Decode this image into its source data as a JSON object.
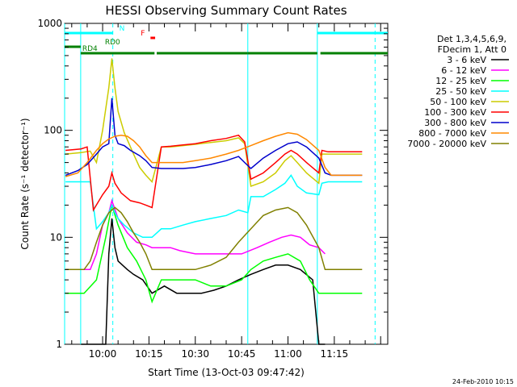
{
  "chart_data": {
    "type": "line",
    "title": "HESSI Observing Summary Count Rates",
    "xlabel": "Start Time (13-Oct-03 09:47:42)",
    "ylabel": "Count Rate (s⁻¹ detector⁻¹)",
    "y_scale": "log",
    "ylim": [
      1,
      1000
    ],
    "xlim_minutes": [
      -12.3,
      92.3
    ],
    "x_ticks": [
      {
        "label": "10:00",
        "value": 0
      },
      {
        "label": "10:15",
        "value": 15
      },
      {
        "label": "10:30",
        "value": 30
      },
      {
        "label": "10:45",
        "value": 45
      },
      {
        "label": "11:00",
        "value": 60
      },
      {
        "label": "11:15",
        "value": 75
      }
    ],
    "y_ticks": [
      {
        "label": "1",
        "value": 1
      },
      {
        "label": "10",
        "value": 10
      },
      {
        "label": "100",
        "value": 100
      },
      {
        "label": "1000",
        "value": 1000
      }
    ],
    "legend_header": [
      "Det 1,3,4,5,6,9,",
      "FDecim 1, Att 0"
    ],
    "series": [
      {
        "name": "3 - 6 keV",
        "color": "#000000",
        "points": [
          [
            -7,
            1
          ],
          [
            -3,
            1
          ],
          [
            1,
            1
          ],
          [
            2,
            7
          ],
          [
            3,
            15
          ],
          [
            4,
            8
          ],
          [
            5,
            6
          ],
          [
            8,
            5
          ],
          [
            10,
            4.5
          ],
          [
            13,
            4
          ],
          [
            16,
            3
          ],
          [
            20,
            3.5
          ],
          [
            24,
            3
          ],
          [
            28,
            3
          ],
          [
            32,
            3
          ],
          [
            36,
            3.2
          ],
          [
            40,
            3.5
          ],
          [
            44,
            4
          ],
          [
            48,
            4.5
          ],
          [
            52,
            5
          ],
          [
            56,
            5.5
          ],
          [
            60,
            5.5
          ],
          [
            64,
            5
          ],
          [
            68,
            4
          ],
          [
            70,
            1
          ],
          [
            71,
            1
          ],
          [
            72,
            1
          ]
        ]
      },
      {
        "name": "6 - 12 keV",
        "color": "#ff00ff",
        "points": [
          [
            -7,
            5
          ],
          [
            -4,
            5
          ],
          [
            -2,
            7
          ],
          [
            0,
            13
          ],
          [
            2,
            17
          ],
          [
            3,
            22
          ],
          [
            5,
            15
          ],
          [
            8,
            11
          ],
          [
            11,
            9
          ],
          [
            14,
            8.5
          ],
          [
            16,
            8
          ],
          [
            19,
            8
          ],
          [
            22,
            8
          ],
          [
            25,
            7.5
          ],
          [
            30,
            7
          ],
          [
            35,
            7
          ],
          [
            40,
            7
          ],
          [
            45,
            7
          ],
          [
            50,
            8
          ],
          [
            54,
            9
          ],
          [
            58,
            10
          ],
          [
            61,
            10.5
          ],
          [
            64,
            10
          ],
          [
            67,
            8.5
          ],
          [
            70,
            8
          ],
          [
            72,
            7
          ]
        ]
      },
      {
        "name": "12 - 25 keV",
        "color": "#00ff00",
        "points": [
          [
            -12,
            3
          ],
          [
            -8,
            3
          ],
          [
            -6,
            3
          ],
          [
            -2,
            4
          ],
          [
            1,
            10
          ],
          [
            3,
            20
          ],
          [
            5,
            13
          ],
          [
            8,
            8
          ],
          [
            11,
            6
          ],
          [
            14,
            4
          ],
          [
            16,
            2.5
          ],
          [
            19,
            4
          ],
          [
            22,
            4
          ],
          [
            26,
            4
          ],
          [
            30,
            4
          ],
          [
            35,
            3.5
          ],
          [
            40,
            3.5
          ],
          [
            45,
            4
          ],
          [
            48,
            5
          ],
          [
            52,
            6
          ],
          [
            56,
            6.5
          ],
          [
            60,
            7
          ],
          [
            64,
            6
          ],
          [
            67,
            4
          ],
          [
            70,
            3
          ],
          [
            74,
            3
          ],
          [
            84,
            3
          ]
        ]
      },
      {
        "name": "25 - 50 keV",
        "color": "#00ffff",
        "points": [
          [
            -12,
            33
          ],
          [
            -7,
            33
          ],
          [
            -4,
            33
          ],
          [
            -2,
            12
          ],
          [
            0,
            14
          ],
          [
            2,
            17
          ],
          [
            3,
            20
          ],
          [
            4,
            17
          ],
          [
            5,
            15
          ],
          [
            7,
            13
          ],
          [
            10,
            11
          ],
          [
            13,
            10
          ],
          [
            16,
            10
          ],
          [
            19,
            12
          ],
          [
            22,
            12
          ],
          [
            26,
            13
          ],
          [
            30,
            14
          ],
          [
            35,
            15
          ],
          [
            40,
            16
          ],
          [
            44,
            18
          ],
          [
            47,
            17
          ],
          [
            48,
            24
          ],
          [
            52,
            24
          ],
          [
            56,
            28
          ],
          [
            59,
            32
          ],
          [
            61,
            38
          ],
          [
            63,
            30
          ],
          [
            66,
            26
          ],
          [
            70,
            25
          ],
          [
            71,
            32
          ],
          [
            73,
            33
          ],
          [
            84,
            33
          ]
        ]
      },
      {
        "name": "50 - 100 keV",
        "color": "#cccc00",
        "points": [
          [
            -12,
            60
          ],
          [
            -7,
            62
          ],
          [
            -4,
            64
          ],
          [
            -2,
            50
          ],
          [
            0,
            100
          ],
          [
            2,
            250
          ],
          [
            3,
            470
          ],
          [
            4,
            250
          ],
          [
            5,
            150
          ],
          [
            7,
            95
          ],
          [
            10,
            60
          ],
          [
            12,
            45
          ],
          [
            14,
            38
          ],
          [
            16,
            33
          ],
          [
            19,
            70
          ],
          [
            22,
            70
          ],
          [
            26,
            72
          ],
          [
            30,
            74
          ],
          [
            35,
            77
          ],
          [
            40,
            80
          ],
          [
            44,
            85
          ],
          [
            46,
            75
          ],
          [
            48,
            30
          ],
          [
            52,
            33
          ],
          [
            56,
            40
          ],
          [
            59,
            52
          ],
          [
            61,
            58
          ],
          [
            63,
            50
          ],
          [
            66,
            40
          ],
          [
            70,
            32
          ],
          [
            71,
            60
          ],
          [
            73,
            60
          ],
          [
            84,
            60
          ]
        ]
      },
      {
        "name": "100 - 300 keV",
        "color": "#ff0000",
        "points": [
          [
            -12,
            65
          ],
          [
            -7,
            67
          ],
          [
            -5,
            70
          ],
          [
            -3,
            18
          ],
          [
            0,
            25
          ],
          [
            2,
            30
          ],
          [
            3,
            40
          ],
          [
            4,
            32
          ],
          [
            6,
            26
          ],
          [
            9,
            22
          ],
          [
            12,
            21
          ],
          [
            14,
            20
          ],
          [
            16,
            19
          ],
          [
            19,
            70
          ],
          [
            22,
            71
          ],
          [
            26,
            73
          ],
          [
            30,
            75
          ],
          [
            35,
            80
          ],
          [
            40,
            84
          ],
          [
            44,
            90
          ],
          [
            46,
            78
          ],
          [
            48,
            35
          ],
          [
            52,
            40
          ],
          [
            56,
            50
          ],
          [
            59,
            60
          ],
          [
            61,
            65
          ],
          [
            63,
            60
          ],
          [
            66,
            50
          ],
          [
            70,
            40
          ],
          [
            71,
            65
          ],
          [
            73,
            63
          ],
          [
            84,
            63
          ]
        ]
      },
      {
        "name": "300 - 800 keV",
        "color": "#0000cc",
        "points": [
          [
            -12,
            38
          ],
          [
            -8,
            42
          ],
          [
            -5,
            48
          ],
          [
            -2,
            60
          ],
          [
            0,
            70
          ],
          [
            2,
            75
          ],
          [
            3,
            200
          ],
          [
            4,
            90
          ],
          [
            5,
            75
          ],
          [
            7,
            72
          ],
          [
            9,
            65
          ],
          [
            12,
            58
          ],
          [
            14,
            52
          ],
          [
            16,
            45
          ],
          [
            19,
            44
          ],
          [
            22,
            44
          ],
          [
            26,
            44
          ],
          [
            30,
            45
          ],
          [
            35,
            48
          ],
          [
            40,
            52
          ],
          [
            44,
            57
          ],
          [
            46,
            50
          ],
          [
            48,
            44
          ],
          [
            52,
            55
          ],
          [
            56,
            65
          ],
          [
            60,
            75
          ],
          [
            63,
            78
          ],
          [
            66,
            70
          ],
          [
            70,
            55
          ],
          [
            72,
            40
          ],
          [
            74,
            38
          ],
          [
            84,
            38
          ]
        ]
      },
      {
        "name": "800 - 7000 keV",
        "color": "#ff8800",
        "points": [
          [
            -12,
            37
          ],
          [
            -8,
            40
          ],
          [
            -5,
            50
          ],
          [
            -2,
            65
          ],
          [
            0,
            75
          ],
          [
            2,
            83
          ],
          [
            4,
            88
          ],
          [
            6,
            90
          ],
          [
            8,
            88
          ],
          [
            10,
            80
          ],
          [
            12,
            70
          ],
          [
            14,
            58
          ],
          [
            16,
            50
          ],
          [
            19,
            50
          ],
          [
            22,
            50
          ],
          [
            26,
            50
          ],
          [
            30,
            52
          ],
          [
            35,
            55
          ],
          [
            40,
            60
          ],
          [
            44,
            65
          ],
          [
            48,
            72
          ],
          [
            52,
            80
          ],
          [
            56,
            88
          ],
          [
            60,
            95
          ],
          [
            63,
            92
          ],
          [
            66,
            82
          ],
          [
            70,
            65
          ],
          [
            72,
            45
          ],
          [
            74,
            38
          ],
          [
            84,
            38
          ]
        ]
      },
      {
        "name": "7000 - 20000 keV",
        "color": "#808000",
        "points": [
          [
            -12,
            5
          ],
          [
            -8,
            5
          ],
          [
            -6,
            5
          ],
          [
            -4,
            6
          ],
          [
            -2,
            9
          ],
          [
            0,
            13
          ],
          [
            2,
            17
          ],
          [
            4,
            19
          ],
          [
            6,
            17
          ],
          [
            8,
            14
          ],
          [
            10,
            11
          ],
          [
            12,
            9
          ],
          [
            14,
            7
          ],
          [
            16,
            5
          ],
          [
            19,
            5
          ],
          [
            22,
            5
          ],
          [
            26,
            5
          ],
          [
            30,
            5
          ],
          [
            35,
            5.5
          ],
          [
            40,
            6.5
          ],
          [
            44,
            9
          ],
          [
            48,
            12
          ],
          [
            52,
            16
          ],
          [
            56,
            18
          ],
          [
            60,
            19
          ],
          [
            63,
            17
          ],
          [
            66,
            13
          ],
          [
            70,
            8
          ],
          [
            72,
            5
          ],
          [
            74,
            5
          ],
          [
            84,
            5
          ]
        ]
      }
    ],
    "vertical_lines": [
      {
        "x": -12.3,
        "color": "#00ffff",
        "style": "solid"
      },
      {
        "x": 3.3,
        "color": "#00ffff",
        "style": "dashed"
      },
      {
        "x": 69.5,
        "color": "#00ffff",
        "style": "solid"
      },
      {
        "x": 88.2,
        "color": "#00ffff",
        "style": "dashed"
      },
      {
        "x": -7.1,
        "color": "#00ffff",
        "style": "solid"
      },
      {
        "x": 47.0,
        "color": "#00ffff",
        "style": "solid"
      }
    ],
    "flag_bars": [
      {
        "label": "N",
        "color": "#00ffff",
        "segments": [
          [
            -12.3,
            3.3
          ],
          [
            69.5,
            92.3
          ]
        ],
        "level": 1
      },
      {
        "label": "F",
        "color": "#ff0000",
        "segments": [
          [
            15.5,
            17.0
          ]
        ],
        "level": 2
      },
      {
        "label": "RD0",
        "color": "#008000",
        "segments": [
          [
            -12.3,
            -7.1
          ]
        ],
        "level": 3
      },
      {
        "label": "RD4",
        "color": "#008000",
        "segments": [
          [
            -7.1,
            16.8
          ],
          [
            17.5,
            47.0
          ],
          [
            47.0,
            69.5
          ],
          [
            70.5,
            92.3
          ]
        ],
        "level": 4
      }
    ],
    "footer_timestamp": "24-Feb-2010 10:15"
  }
}
